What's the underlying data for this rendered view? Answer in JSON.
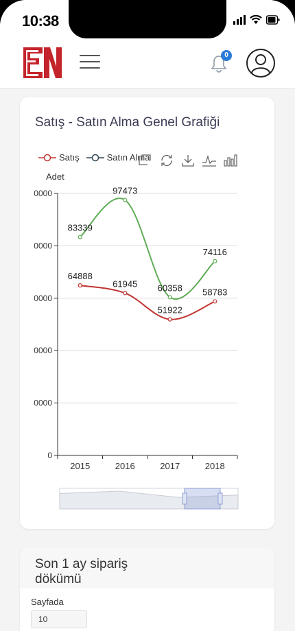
{
  "status_bar": {
    "time": "10:38"
  },
  "header": {
    "notification_count": "0",
    "brand_color": "#c4242b"
  },
  "chart_card": {
    "title": "Satış - Satın Alma Genel Grafiği",
    "toolbox_icons": [
      "zoom-icon",
      "zoom-reset-icon",
      "restore-icon",
      "download-icon",
      "line-chart-icon",
      "bar-chart-icon"
    ]
  },
  "chart_data": {
    "type": "line",
    "x": [
      "2015",
      "2016",
      "2017",
      "2018"
    ],
    "series": [
      {
        "name": "Satış",
        "color": "#c23531",
        "values": [
          64888,
          61945,
          51922,
          58783
        ]
      },
      {
        "name": "Satın Alma",
        "color": "#5fad56",
        "values": [
          83339,
          97473,
          60358,
          74116
        ]
      }
    ],
    "ylabel": "Adet",
    "ylim": [
      0,
      100000
    ],
    "yticks": [
      "0",
      "0000",
      "0000",
      "0000",
      "0000",
      "0000"
    ],
    "smooth": true,
    "grid": true,
    "legend_position": "top-left",
    "data_zoom": {
      "start": 0.7,
      "end": 0.9
    }
  },
  "orders_card": {
    "title": "Son 1 ay sipariş dökümü",
    "page_size_label": "Sayfada",
    "page_size_value": "10"
  }
}
